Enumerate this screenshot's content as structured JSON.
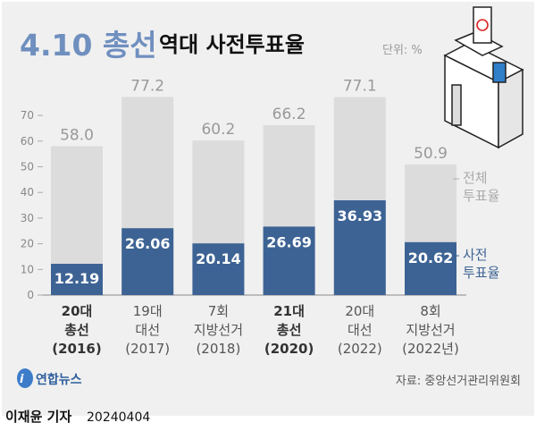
{
  "title_highlight": "4.10 총선",
  "title": "역대 사전투표율",
  "unit": "단위: %",
  "source": "자료: 중앙선거관리위원회",
  "logo": "연합뉴스",
  "byline": "이재윤 기자",
  "date": "20240404",
  "colors": {
    "total": "#dcdcdc",
    "early": "#3d6394",
    "title_accent": "#6f8fbf",
    "title_dark": "#3d6394",
    "panel": "#f0f0f0"
  },
  "chart_data": {
    "type": "bar",
    "stacked_overlay": true,
    "categories": [
      {
        "lines": [
          "20대",
          "총선",
          "(2016)"
        ],
        "bold": true
      },
      {
        "lines": [
          "19대",
          "대선",
          "(2017)"
        ],
        "bold": false
      },
      {
        "lines": [
          "7회",
          "지방선거",
          "(2018)"
        ],
        "bold": false
      },
      {
        "lines": [
          "21대",
          "총선",
          "(2020)"
        ],
        "bold": true
      },
      {
        "lines": [
          "20대",
          "대선",
          "(2022)"
        ],
        "bold": false
      },
      {
        "lines": [
          "8회",
          "지방선거",
          "(2022년)"
        ],
        "bold": false
      }
    ],
    "series": [
      {
        "name": "전체 투표율",
        "name_lines": [
          "전체",
          "투표율"
        ],
        "values": [
          58.0,
          77.2,
          60.2,
          66.2,
          77.1,
          50.9
        ],
        "labels": [
          "58.0",
          "77.2",
          "60.2",
          "66.2",
          "77.1",
          "50.9"
        ]
      },
      {
        "name": "사전 투표율",
        "name_lines": [
          "사전",
          "투표율"
        ],
        "values": [
          12.19,
          26.06,
          20.14,
          26.69,
          36.93,
          20.62
        ],
        "labels": [
          "12.19",
          "26.06",
          "20.14",
          "26.69",
          "36.93",
          "20.62"
        ]
      }
    ],
    "yticks": [
      0,
      10,
      20,
      30,
      40,
      50,
      60,
      70
    ],
    "ylim": [
      0,
      80
    ],
    "grid": false,
    "legend": "right"
  }
}
